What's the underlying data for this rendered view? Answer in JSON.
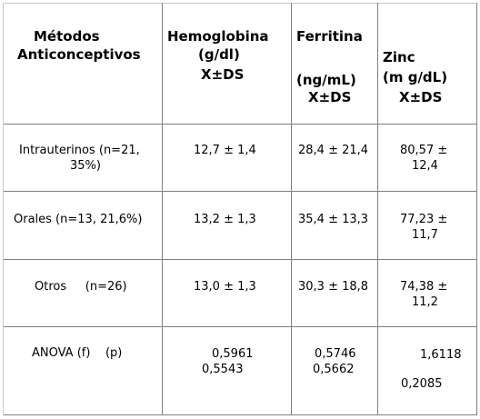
{
  "table": {
    "headers": {
      "col1": [
        "Métodos",
        "Anticonceptivos"
      ],
      "col2": [
        "Hemoglobina",
        "(g/dl)",
        "X±DS"
      ],
      "col3_top": "Ferritina",
      "col3_bottom": [
        "(ng/mL)",
        "X±DS"
      ],
      "col4": [
        "Zinc",
        "(m g/dL)",
        "X±DS"
      ]
    },
    "rows": [
      {
        "label": [
          "Intrauterinos (n=21,",
          "35%)"
        ],
        "hemoglobina": "12,7 ± 1,4",
        "ferritina": "28,4 ± 21,4",
        "zinc": [
          "80,57 ±",
          "12,4"
        ]
      },
      {
        "label": [
          "Orales (n=13, 21,6%)"
        ],
        "hemoglobina": "13,2 ± 1,3",
        "ferritina": "35,4 ± 13,3",
        "zinc": [
          "77,23 ±",
          "11,7"
        ]
      },
      {
        "label": [
          "Otros     (n=26)"
        ],
        "hemoglobina": "13,0 ± 1,3",
        "ferritina": "30,3 ± 18,8",
        "zinc": [
          "74,38 ±",
          "11,2"
        ]
      },
      {
        "label": [
          "ANOVA (f)    (p)"
        ],
        "hemoglobina": [
          "0,5961",
          "0,5543"
        ],
        "ferritina": [
          "0,5746",
          "0,5662"
        ],
        "zinc": [
          "1,6118",
          "0,2085"
        ]
      }
    ]
  },
  "colors": {
    "border_dark": "#808080",
    "border_light": "#c8c8c8",
    "background": "#ffffff"
  }
}
